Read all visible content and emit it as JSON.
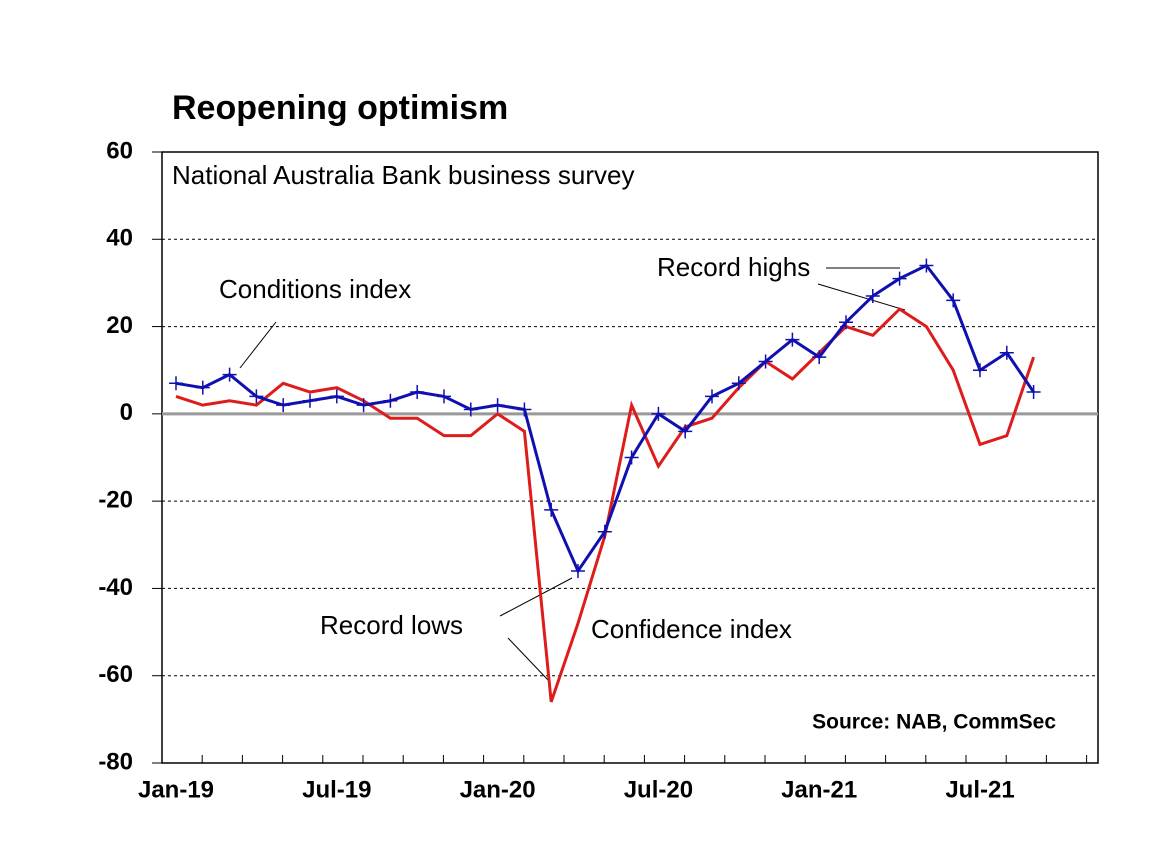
{
  "chart_data": {
    "type": "line",
    "title": "Reopening optimism",
    "subtitle": "National Australia Bank business survey",
    "source": "Source: NAB, CommSec",
    "annotations": [
      "Conditions index",
      "Record highs",
      "Record lows",
      "Confidence index"
    ],
    "categories": [
      "Jan-19",
      null,
      null,
      null,
      null,
      null,
      "Jul-19",
      null,
      null,
      null,
      null,
      null,
      "Jan-20",
      null,
      null,
      null,
      null,
      null,
      "Jul-20",
      null,
      null,
      null,
      null,
      null,
      "Jan-21",
      null,
      null,
      null,
      null,
      null,
      "Jul-21",
      null,
      null
    ],
    "series": [
      {
        "name": "Conditions index",
        "color": "#1010b0",
        "marker": "+",
        "values": [
          7,
          6,
          9,
          4,
          2,
          3,
          4,
          2,
          3,
          5,
          4,
          1,
          2,
          1,
          -22,
          -36,
          -27,
          -10,
          0,
          -4,
          4,
          7,
          12,
          17,
          13,
          21,
          27,
          31,
          34,
          26,
          10,
          14,
          5
        ]
      },
      {
        "name": "Confidence index",
        "color": "#dd1c1c",
        "values": [
          4,
          2,
          3,
          2,
          7,
          5,
          6,
          3,
          -1,
          -1,
          -5,
          -5,
          0,
          -4,
          -66,
          -48,
          -28,
          2,
          -12,
          -3,
          -1,
          6,
          12,
          8,
          14,
          20,
          18,
          24,
          20,
          10,
          -7,
          -5,
          13
        ]
      }
    ],
    "ylim": [
      -80,
      60
    ],
    "yticks": [
      -80,
      -60,
      -40,
      -20,
      0,
      20,
      40,
      60
    ],
    "grid": true
  }
}
